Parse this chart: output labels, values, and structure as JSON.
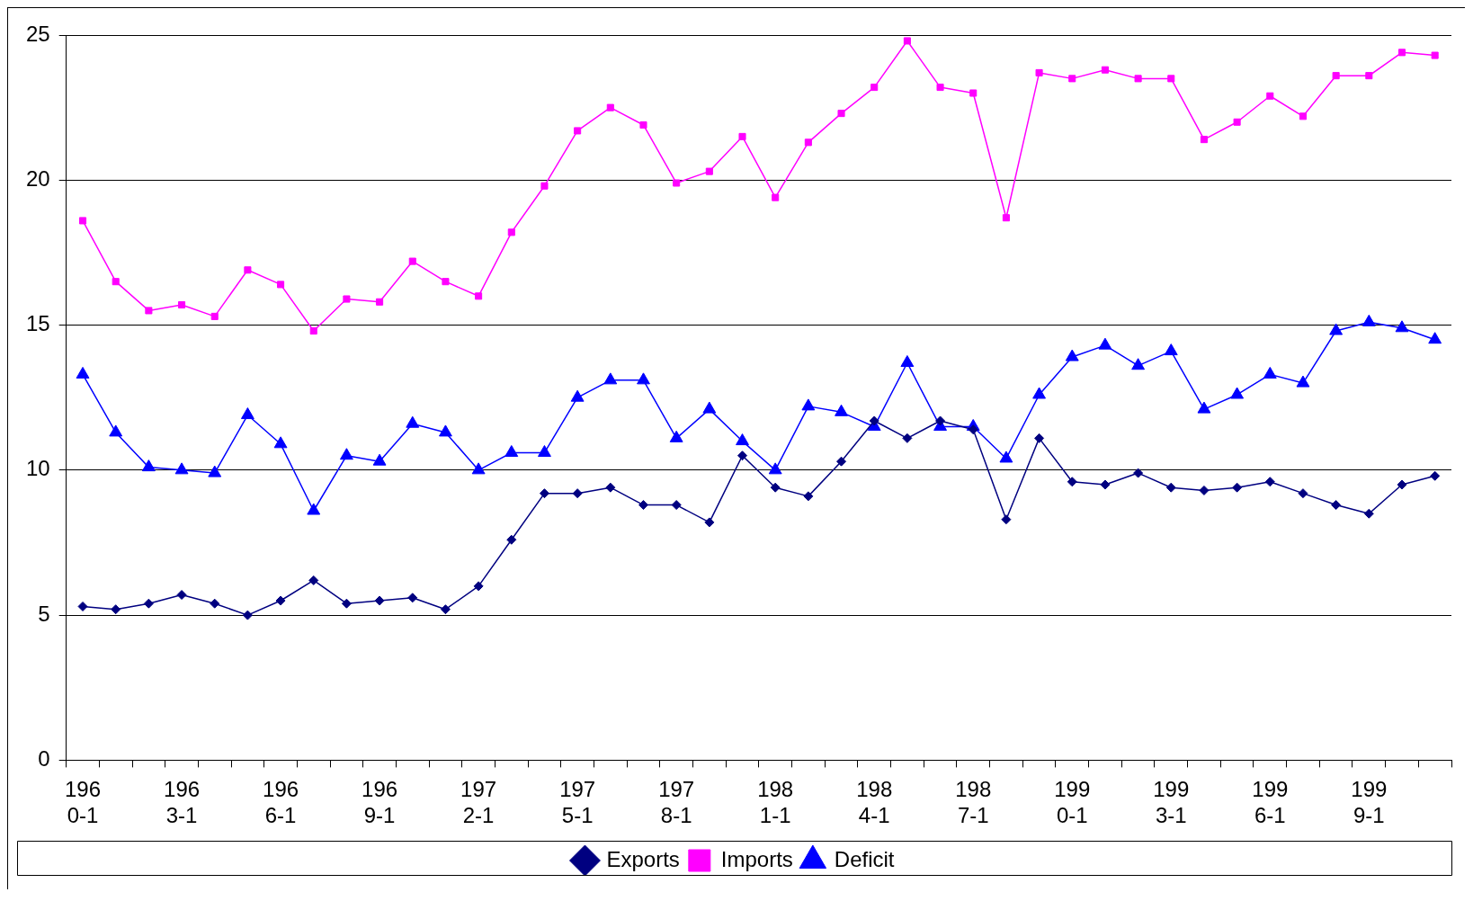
{
  "chart_data": {
    "type": "line",
    "categories": [
      "1960-1",
      null,
      null,
      "1963-1",
      null,
      null,
      "1966-1",
      null,
      null,
      "1969-1",
      null,
      null,
      "1972-1",
      null,
      null,
      "1975-1",
      null,
      null,
      "1978-1",
      null,
      null,
      "1981-1",
      null,
      null,
      "1984-1",
      null,
      null,
      "1987-1",
      null,
      null,
      "1990-1",
      null,
      null,
      "1993-1",
      null,
      null,
      "1996-1",
      null,
      null,
      "1999-1",
      null,
      null
    ],
    "series": [
      {
        "name": "Exports",
        "color": "#000080",
        "marker": "diamond",
        "values": [
          5.3,
          5.2,
          5.4,
          5.7,
          5.4,
          5.0,
          5.5,
          6.2,
          5.4,
          5.5,
          5.6,
          5.2,
          6.0,
          7.6,
          9.2,
          9.2,
          9.4,
          8.8,
          8.8,
          8.2,
          10.5,
          9.4,
          9.1,
          10.3,
          11.7,
          11.1,
          11.7,
          11.4,
          8.3,
          11.1,
          9.6,
          9.5,
          9.9,
          9.4,
          9.3,
          9.4,
          9.6,
          9.2,
          8.8,
          8.5,
          9.5,
          9.8
        ]
      },
      {
        "name": "Imports",
        "color": "#ff00ff",
        "marker": "square",
        "values": [
          18.6,
          16.5,
          15.5,
          15.7,
          15.3,
          16.9,
          16.4,
          14.8,
          15.9,
          15.8,
          17.2,
          16.5,
          16.0,
          18.2,
          19.8,
          21.7,
          22.5,
          21.9,
          19.9,
          20.3,
          21.5,
          19.4,
          21.3,
          22.3,
          23.2,
          24.8,
          23.2,
          23.0,
          18.7,
          23.7,
          23.5,
          23.8,
          23.5,
          23.5,
          21.4,
          22.0,
          22.9,
          22.2,
          23.6,
          23.6,
          24.4,
          24.3
        ]
      },
      {
        "name": "Deficit",
        "color": "#0000ff",
        "marker": "triangle",
        "values": [
          13.3,
          11.3,
          10.1,
          10.0,
          9.9,
          11.9,
          10.9,
          8.6,
          10.5,
          10.3,
          11.6,
          11.3,
          10.0,
          10.6,
          10.6,
          12.5,
          13.1,
          13.1,
          11.1,
          12.1,
          11.0,
          10.0,
          12.2,
          12.0,
          11.5,
          13.7,
          11.5,
          11.5,
          10.4,
          12.6,
          13.9,
          14.3,
          13.6,
          14.1,
          12.1,
          12.6,
          13.3,
          13.0,
          14.8,
          15.1,
          14.9,
          14.5
        ]
      }
    ],
    "ylim": [
      0,
      25
    ],
    "yticks": [
      0,
      5,
      10,
      15,
      20,
      25
    ],
    "grid": "y",
    "legend": "bottom"
  }
}
